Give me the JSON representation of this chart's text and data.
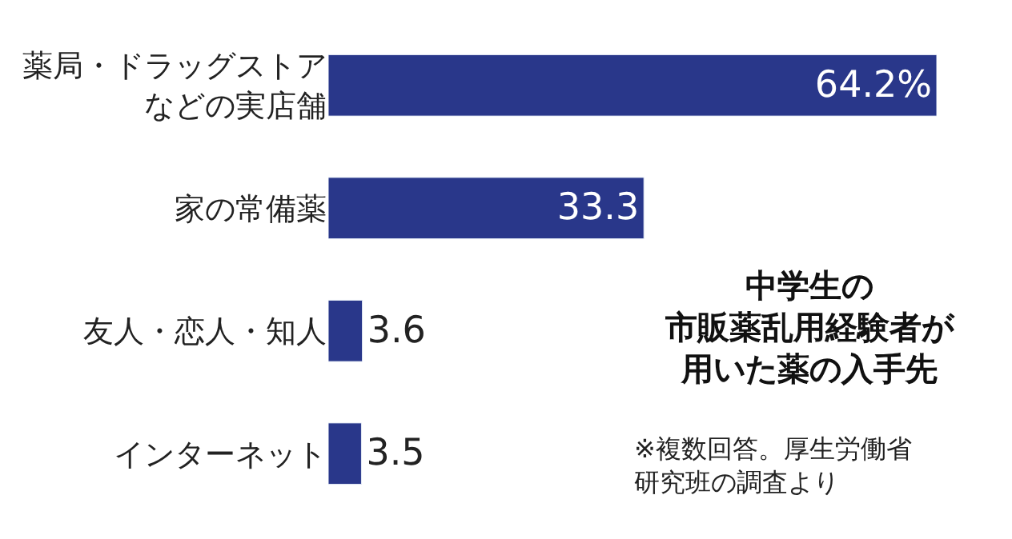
{
  "chart_data": {
    "type": "bar",
    "orientation": "horizontal",
    "title": "中学生の市販薬乱用経験者が用いた薬の入手先",
    "categories": [
      "薬局・ドラッグストアなどの実店舗",
      "家の常備薬",
      "友人・恋人・知人",
      "インターネット"
    ],
    "values": [
      64.2,
      33.3,
      3.6,
      3.5
    ],
    "value_labels": [
      "64.2%",
      "33.3",
      "3.6",
      "3.5"
    ],
    "color": "#29378a",
    "annotations": [
      "※複数回答。厚生労働省研究班の調査より"
    ],
    "legend": false
  }
}
